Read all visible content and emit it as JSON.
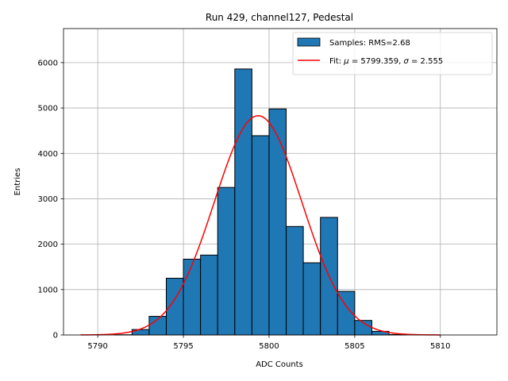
{
  "chart_data": {
    "type": "bar",
    "title": "Run 429, channel127, Pedestal",
    "xlabel": "ADC Counts",
    "ylabel": "Entries",
    "xlim": [
      5788,
      5813.3
    ],
    "ylim": [
      0,
      6750
    ],
    "xticks": [
      5790,
      5795,
      5800,
      5805,
      5810
    ],
    "yticks": [
      0,
      1000,
      2000,
      3000,
      4000,
      5000,
      6000
    ],
    "grid": true,
    "legend_position": "top-right",
    "histogram": {
      "name": "Samples: RMS=2.68",
      "color": "#1f77b4",
      "edge_color": "#000000",
      "bins": [
        {
          "x0": 5789,
          "x1": 5790,
          "value": 0
        },
        {
          "x0": 5790,
          "x1": 5791,
          "value": 0
        },
        {
          "x0": 5791,
          "x1": 5792,
          "value": 5
        },
        {
          "x0": 5792,
          "x1": 5793,
          "value": 120
        },
        {
          "x0": 5793,
          "x1": 5794,
          "value": 410
        },
        {
          "x0": 5794,
          "x1": 5795,
          "value": 1250
        },
        {
          "x0": 5795,
          "x1": 5796,
          "value": 1670
        },
        {
          "x0": 5796,
          "x1": 5797,
          "value": 1760
        },
        {
          "x0": 5797,
          "x1": 5798,
          "value": 3250
        },
        {
          "x0": 5798,
          "x1": 5799,
          "value": 5860
        },
        {
          "x0": 5799,
          "x1": 5800,
          "value": 4390
        },
        {
          "x0": 5800,
          "x1": 5801,
          "value": 4980
        },
        {
          "x0": 5801,
          "x1": 5802,
          "value": 2390
        },
        {
          "x0": 5802,
          "x1": 5803,
          "value": 1590
        },
        {
          "x0": 5803,
          "x1": 5804,
          "value": 2590
        },
        {
          "x0": 5804,
          "x1": 5805,
          "value": 960
        },
        {
          "x0": 5805,
          "x1": 5806,
          "value": 320
        },
        {
          "x0": 5806,
          "x1": 5807,
          "value": 80
        },
        {
          "x0": 5807,
          "x1": 5808,
          "value": 10
        },
        {
          "x0": 5808,
          "x1": 5809,
          "value": 0
        },
        {
          "x0": 5809,
          "x1": 5810,
          "value": 0
        }
      ]
    },
    "fit": {
      "name": "Fit: μ = 5799.359, σ = 2.555",
      "name_mu": "μ",
      "name_sigma": "σ",
      "color": "#ff0000",
      "mu": 5799.359,
      "sigma": 2.555,
      "amplitude": 4830,
      "x_range": [
        5789,
        5810
      ]
    }
  }
}
